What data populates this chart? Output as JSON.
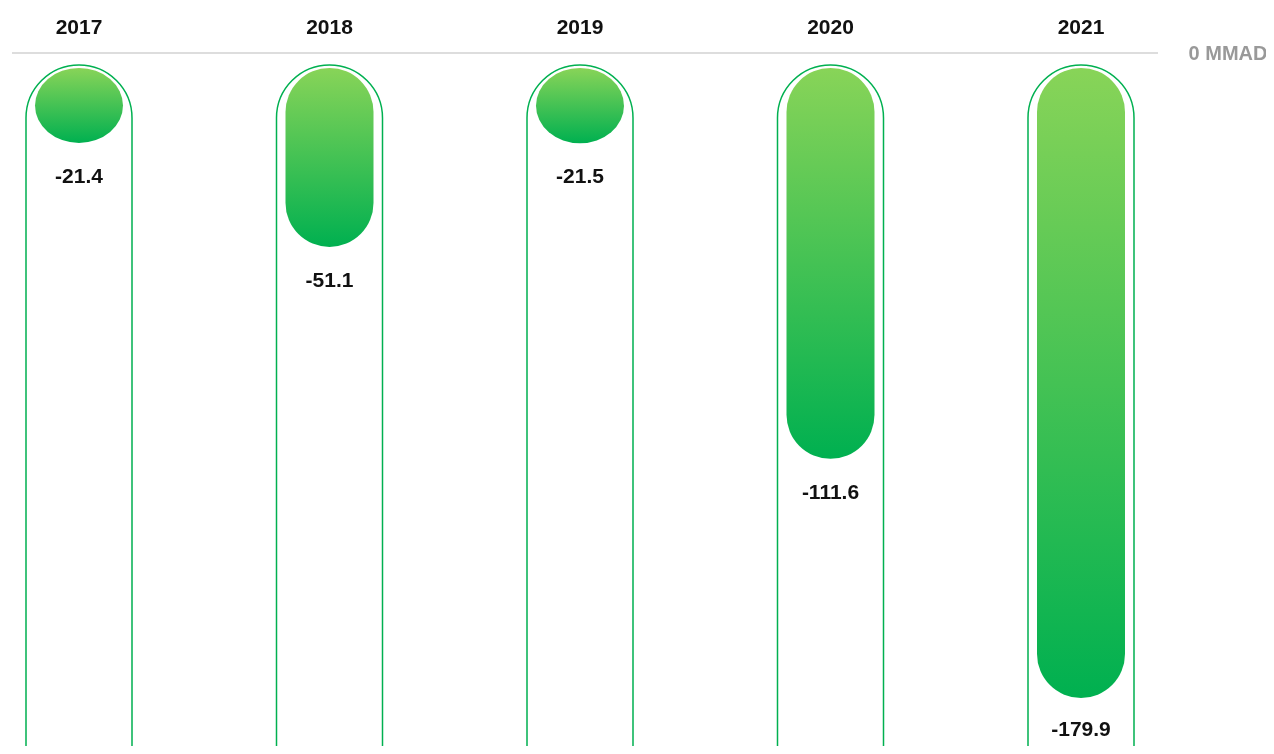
{
  "chart_data": {
    "type": "bar",
    "categories": [
      "2017",
      "2018",
      "2019",
      "2020",
      "2021"
    ],
    "values": [
      -21.4,
      -51.1,
      -21.5,
      -111.6,
      -179.9
    ],
    "color": "#00b050",
    "annotations": [
      "0 MMAD"
    ],
    "data_labels": true
  }
}
